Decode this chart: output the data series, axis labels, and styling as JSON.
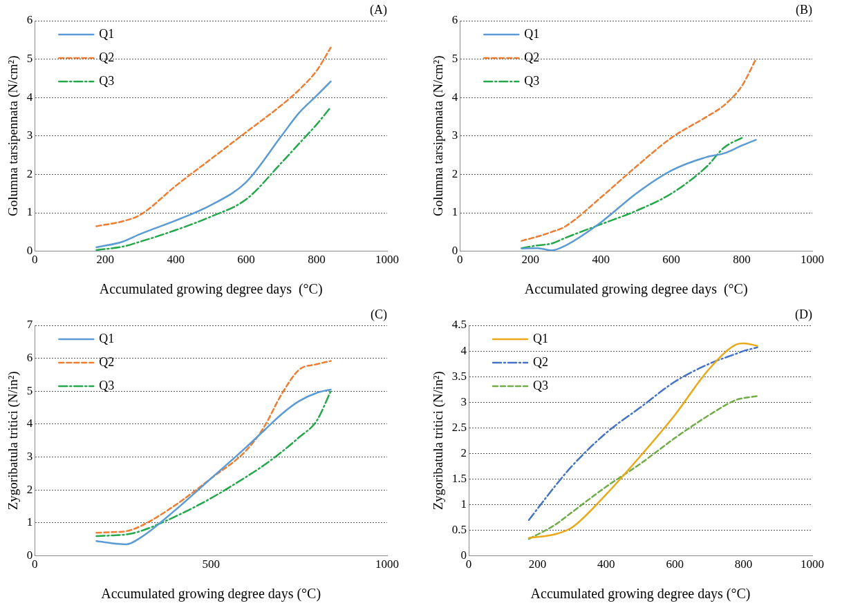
{
  "chart_data": [
    {
      "type": "line",
      "annotations": [
        "(A)"
      ],
      "xlabel": "Accumulated growing degree days  (°C)",
      "ylabel": "Golumna tarsipennata (N/cm²)",
      "xlim": [
        0,
        1000
      ],
      "xticks": [
        0,
        200,
        400,
        600,
        800,
        1000
      ],
      "ylim": [
        0,
        6
      ],
      "yticks": [
        0,
        1,
        2,
        3,
        4,
        5,
        6
      ],
      "grid": "y",
      "legend": "top left",
      "marker": "none",
      "x": [
        175,
        250,
        300,
        400,
        500,
        600,
        700,
        750,
        800,
        840
      ],
      "series": [
        {
          "name": "Q1",
          "color": "#5b9bd5",
          "line_style": "solid",
          "values": [
            0.1,
            0.25,
            0.45,
            0.8,
            1.2,
            1.8,
            3.0,
            3.6,
            4.05,
            4.42
          ]
        },
        {
          "name": "Q2",
          "color": "#ed7d31",
          "line_style": "dashed",
          "values": [
            0.65,
            0.78,
            0.95,
            1.7,
            2.4,
            3.1,
            3.8,
            4.2,
            4.7,
            5.3
          ]
        },
        {
          "name": "Q3",
          "color": "#22a84a",
          "line_style": "dashdot",
          "values": [
            0.03,
            0.12,
            0.25,
            0.55,
            0.9,
            1.35,
            2.3,
            2.8,
            3.3,
            3.75
          ]
        }
      ]
    },
    {
      "type": "line",
      "annotations": [
        "(B)"
      ],
      "xlabel": "Accumulated growing degree days  (°C)",
      "ylabel": "Golumna tarsipennata (N/cm²)",
      "xlim": [
        0,
        1000
      ],
      "xticks": [
        0,
        200,
        400,
        600,
        800,
        1000
      ],
      "ylim": [
        0,
        6
      ],
      "yticks": [
        0,
        1,
        2,
        3,
        4,
        5,
        6
      ],
      "grid": "y",
      "legend": "top left",
      "marker": "none",
      "x": [
        175,
        220,
        260,
        300,
        400,
        500,
        600,
        700,
        750,
        800,
        840
      ],
      "series": [
        {
          "name": "Q1",
          "color": "#5b9bd5",
          "line_style": "solid",
          "values": [
            0.07,
            0.08,
            0.02,
            0.15,
            0.75,
            1.5,
            2.1,
            2.45,
            2.55,
            2.75,
            2.9
          ]
        },
        {
          "name": "Q2",
          "color": "#ed7d31",
          "line_style": "dashed",
          "values": [
            0.27,
            0.38,
            0.5,
            0.65,
            1.4,
            2.2,
            2.95,
            3.5,
            3.8,
            4.3,
            5.0
          ]
        },
        {
          "name": "Q3",
          "color": "#22a84a",
          "line_style": "dashdot",
          "values": [
            0.08,
            0.15,
            0.2,
            0.35,
            0.7,
            1.05,
            1.5,
            2.2,
            2.7,
            2.95,
            null
          ]
        }
      ]
    },
    {
      "type": "line",
      "annotations": [
        "(C)"
      ],
      "xlabel": "Accumulated growing degree days (°C)",
      "ylabel": "Zygoribatula tritici (N/in²)",
      "xlim": [
        0,
        1000
      ],
      "xticks": [
        0,
        500,
        1000
      ],
      "ylim": [
        0,
        7
      ],
      "yticks": [
        0,
        1,
        2,
        3,
        4,
        5,
        6,
        7
      ],
      "grid": "y",
      "legend": "top left",
      "marker": "none",
      "x": [
        175,
        220,
        260,
        300,
        400,
        500,
        600,
        650,
        700,
        750,
        800,
        840
      ],
      "series": [
        {
          "name": "Q1",
          "color": "#5b9bd5",
          "line_style": "solid",
          "values": [
            0.45,
            0.38,
            0.35,
            0.55,
            1.4,
            2.35,
            3.3,
            3.8,
            4.3,
            4.7,
            4.95,
            5.05
          ]
        },
        {
          "name": "Q2",
          "color": "#ed7d31",
          "line_style": "dashed",
          "values": [
            0.7,
            0.72,
            0.75,
            0.9,
            1.55,
            2.35,
            3.2,
            3.9,
            4.9,
            5.65,
            5.82,
            5.92
          ]
        },
        {
          "name": "Q3",
          "color": "#22a84a",
          "line_style": "dashdot",
          "values": [
            0.6,
            0.62,
            0.65,
            0.75,
            1.2,
            1.75,
            2.4,
            2.75,
            3.15,
            3.6,
            4.1,
            5.0
          ]
        }
      ]
    },
    {
      "type": "line",
      "annotations": [
        "(D)"
      ],
      "xlabel": "Accumulated growing degree days (°C)",
      "ylabel": "Zygoribatula tritici (N/in²)",
      "xlim": [
        0,
        1000
      ],
      "xticks": [
        0,
        200,
        400,
        600,
        800,
        1000
      ],
      "ylim": [
        0,
        4.5
      ],
      "yticks": [
        0,
        0.5,
        1,
        1.5,
        2,
        2.5,
        3,
        3.5,
        4,
        4.5
      ],
      "grid": "y",
      "legend": "top left",
      "marker": "none",
      "x": [
        175,
        250,
        300,
        400,
        500,
        600,
        700,
        780,
        800,
        840
      ],
      "series": [
        {
          "name": "Q1",
          "color": "#e8a817",
          "line_style": "solid",
          "values": [
            0.35,
            0.42,
            0.55,
            1.2,
            1.95,
            2.75,
            3.65,
            4.13,
            4.15,
            4.1
          ]
        },
        {
          "name": "Q2",
          "color": "#4472c4",
          "line_style": "dashdot",
          "values": [
            0.7,
            1.35,
            1.75,
            2.4,
            2.9,
            3.4,
            3.75,
            3.95,
            4.0,
            4.07
          ]
        },
        {
          "name": "Q3",
          "color": "#70ad47",
          "line_style": "dashed",
          "values": [
            0.33,
            0.6,
            0.85,
            1.35,
            1.8,
            2.3,
            2.75,
            3.05,
            3.08,
            3.12
          ]
        }
      ]
    }
  ]
}
